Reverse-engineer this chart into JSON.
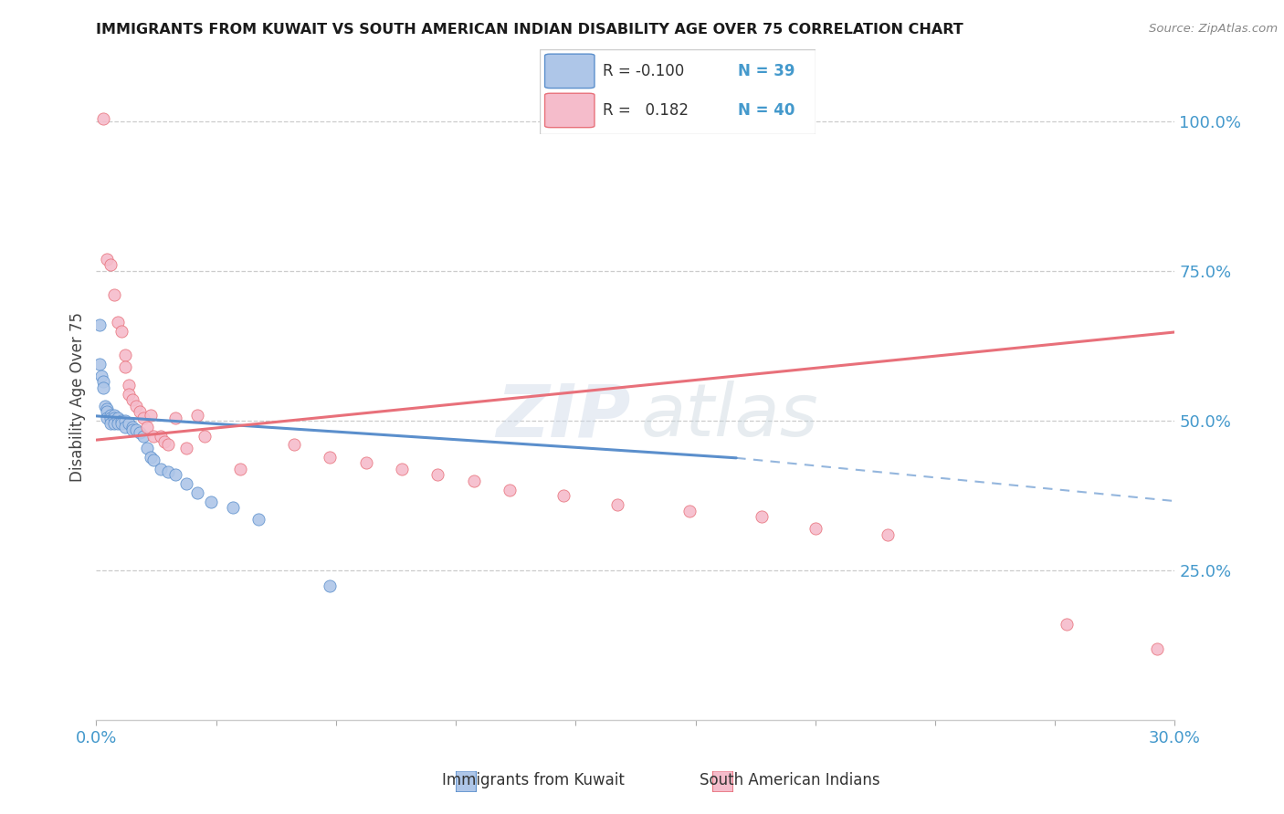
{
  "title": "IMMIGRANTS FROM KUWAIT VS SOUTH AMERICAN INDIAN DISABILITY AGE OVER 75 CORRELATION CHART",
  "source": "Source: ZipAtlas.com",
  "ylabel": "Disability Age Over 75",
  "right_yticks": [
    "100.0%",
    "75.0%",
    "50.0%",
    "25.0%"
  ],
  "right_ytick_vals": [
    1.0,
    0.75,
    0.5,
    0.25
  ],
  "color_kuwait": "#aec6e8",
  "color_india": "#f5bccb",
  "color_kuwait_line": "#5b8fcc",
  "color_india_line": "#e8707a",
  "xmin": 0.0,
  "xmax": 0.3,
  "ymin": 0.0,
  "ymax": 1.08,
  "kuwait_scatter_x": [
    0.0008,
    0.001,
    0.0015,
    0.002,
    0.002,
    0.0025,
    0.003,
    0.003,
    0.003,
    0.004,
    0.004,
    0.004,
    0.005,
    0.005,
    0.005,
    0.006,
    0.006,
    0.007,
    0.007,
    0.008,
    0.008,
    0.009,
    0.01,
    0.01,
    0.011,
    0.012,
    0.013,
    0.014,
    0.015,
    0.016,
    0.018,
    0.02,
    0.022,
    0.025,
    0.028,
    0.032,
    0.038,
    0.045,
    0.065
  ],
  "kuwait_scatter_y": [
    0.66,
    0.595,
    0.575,
    0.565,
    0.555,
    0.525,
    0.52,
    0.515,
    0.505,
    0.51,
    0.505,
    0.495,
    0.51,
    0.505,
    0.495,
    0.505,
    0.495,
    0.5,
    0.495,
    0.5,
    0.49,
    0.495,
    0.49,
    0.485,
    0.485,
    0.48,
    0.475,
    0.455,
    0.44,
    0.435,
    0.42,
    0.415,
    0.41,
    0.395,
    0.38,
    0.365,
    0.355,
    0.335,
    0.225
  ],
  "india_scatter_x": [
    0.002,
    0.003,
    0.004,
    0.005,
    0.006,
    0.007,
    0.008,
    0.008,
    0.009,
    0.009,
    0.01,
    0.011,
    0.012,
    0.013,
    0.014,
    0.015,
    0.016,
    0.018,
    0.019,
    0.02,
    0.022,
    0.025,
    0.028,
    0.03,
    0.04,
    0.055,
    0.065,
    0.075,
    0.085,
    0.095,
    0.105,
    0.115,
    0.13,
    0.145,
    0.165,
    0.185,
    0.2,
    0.22,
    0.27,
    0.295
  ],
  "india_scatter_y": [
    1.005,
    0.77,
    0.76,
    0.71,
    0.665,
    0.65,
    0.61,
    0.59,
    0.56,
    0.545,
    0.535,
    0.525,
    0.515,
    0.505,
    0.49,
    0.51,
    0.475,
    0.475,
    0.465,
    0.46,
    0.505,
    0.455,
    0.51,
    0.475,
    0.42,
    0.46,
    0.44,
    0.43,
    0.42,
    0.41,
    0.4,
    0.385,
    0.375,
    0.36,
    0.35,
    0.34,
    0.32,
    0.31,
    0.16,
    0.12
  ],
  "kuwait_trend_x0": 0.0,
  "kuwait_trend_x1": 0.178,
  "kuwait_trend_x2": 0.3,
  "kuwait_trend_y0": 0.508,
  "kuwait_trend_y1": 0.438,
  "kuwait_trend_y2": 0.366,
  "india_trend_x0": 0.0,
  "india_trend_x1": 0.3,
  "india_trend_y0": 0.468,
  "india_trend_y1": 0.648
}
